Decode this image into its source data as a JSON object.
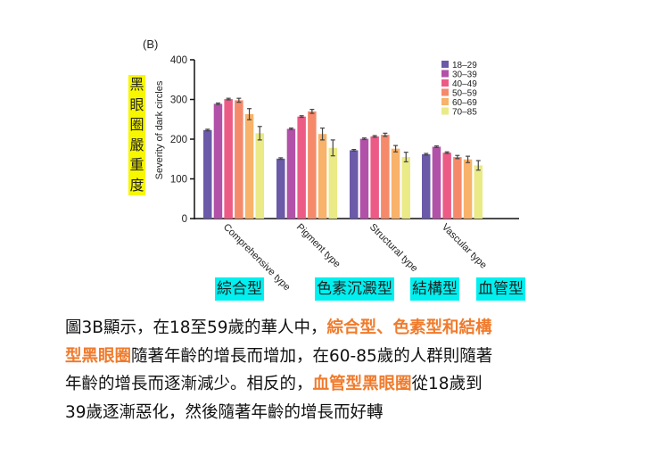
{
  "chart_data": {
    "type": "bar",
    "panel_label": "(B)",
    "ylabel": "Severity of dark circles",
    "ylim": [
      0,
      400
    ],
    "yticks": [
      0,
      100,
      200,
      300,
      400
    ],
    "categories": [
      "Comprehensive type",
      "Pigment type",
      "Structural type",
      "Vascular type"
    ],
    "legend_position": "top-right",
    "series": [
      {
        "name": "18–29",
        "color": "#6a5aa8",
        "values": [
          223,
          151,
          172,
          162
        ],
        "errors": [
          2,
          2,
          2,
          2
        ]
      },
      {
        "name": "30–39",
        "color": "#b152a8",
        "values": [
          289,
          226,
          201,
          181
        ],
        "errors": [
          2,
          2,
          2,
          2
        ]
      },
      {
        "name": "40–49",
        "color": "#ec5b86",
        "values": [
          301,
          257,
          207,
          166
        ],
        "errors": [
          2,
          2,
          2,
          2
        ]
      },
      {
        "name": "50–59",
        "color": "#f58a6b",
        "values": [
          298,
          270,
          211,
          155
        ],
        "errors": [
          5,
          5,
          4,
          4
        ]
      },
      {
        "name": "60–69",
        "color": "#f8b26a",
        "values": [
          263,
          213,
          176,
          149
        ],
        "errors": [
          14,
          15,
          8,
          8
        ]
      },
      {
        "name": "70–85",
        "color": "#eaea86",
        "values": [
          215,
          178,
          155,
          134
        ],
        "errors": [
          17,
          20,
          12,
          12
        ]
      }
    ]
  },
  "annotations": {
    "ylabel_cn": "黑眼圈嚴重度",
    "category_cn": [
      "綜合型",
      "色素沉澱型",
      "結構型",
      "血管型"
    ]
  },
  "paragraph": {
    "lines": [
      [
        {
          "t": "圖3B顯示，在18至59歲的華人中，",
          "h": false
        },
        {
          "t": "綜合型、色素型和結構",
          "h": true
        }
      ],
      [
        {
          "t": "型黑眼圈",
          "h": true
        },
        {
          "t": "隨著年齡的增長而增加，在60-85歲的人群則隨著",
          "h": false
        }
      ],
      [
        {
          "t": "年齡的增長而逐漸減少。相反的，",
          "h": false
        },
        {
          "t": "血管型黑眼圈",
          "h": true
        },
        {
          "t": "從18歲到",
          "h": false
        }
      ],
      [
        {
          "t": "39歲逐漸惡化，然後隨著年齡的增長而好轉",
          "h": false
        }
      ]
    ],
    "highlight_color": "#f07b2c"
  }
}
